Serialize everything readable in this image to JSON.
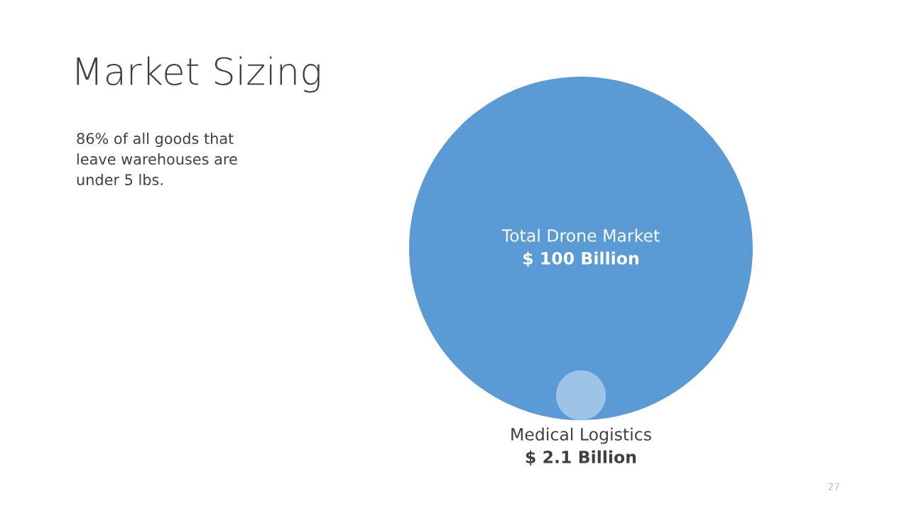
{
  "chart_data": {
    "type": "other",
    "title": "Market Sizing",
    "categories": [
      "Total Drone Market",
      "Medical Logistics"
    ],
    "values": [
      100,
      2.1
    ],
    "value_labels": [
      "$ 100 Billion",
      "$ 2.1 Billion"
    ],
    "colors": [
      "#5b9bd5",
      "#9dc3e6"
    ],
    "annotations": [
      "86% of all goods that leave warehouses are under 5 lbs.",
      "27"
    ]
  }
}
